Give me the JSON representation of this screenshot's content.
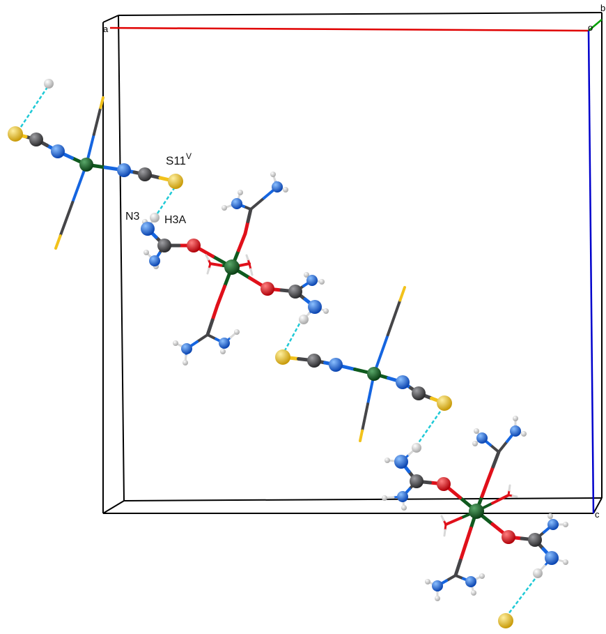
{
  "diagram": {
    "type": "crystal-structure-packing",
    "unit_cell": {
      "axis_labels": {
        "a": "a",
        "b": "b",
        "c": "c",
        "origin": "o"
      }
    },
    "atom_labels": [
      {
        "id": "s11v",
        "base": "S11",
        "sup": "V"
      },
      {
        "id": "n3",
        "base": "N3",
        "sup": ""
      },
      {
        "id": "h3a",
        "base": "H3A",
        "sup": ""
      }
    ],
    "colors": {
      "cobalt": "#0f5a1e",
      "oxygen": "#e0101a",
      "nitrogen": "#1565e0",
      "carbon": "#454548",
      "sulfur": "#f2c21b",
      "hydrogen": "#d8d8d8",
      "hydrogen_bond": "#1fc9d6",
      "cell_a": "#e00000",
      "cell_b": "#00a000",
      "cell_c": "#0000cc",
      "cell_edge": "#000000"
    }
  }
}
